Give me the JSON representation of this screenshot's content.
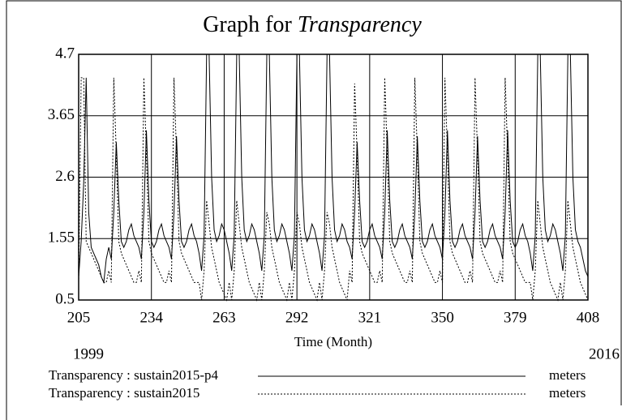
{
  "chart_data": {
    "type": "line",
    "title": "Graph for",
    "title_italic": "Transparency",
    "x_label": "Time (Month)",
    "x_start_label": "1999",
    "x_end_label": "2016",
    "xlim": [
      205,
      408
    ],
    "xticks": [
      205,
      234,
      263,
      292,
      321,
      350,
      379,
      408
    ],
    "ylim": [
      0.5,
      4.7
    ],
    "yticks": [
      0.5,
      1.55,
      2.6,
      3.65,
      4.7
    ],
    "grid": true,
    "x": [
      205,
      206,
      207,
      208,
      209,
      210,
      211,
      212,
      213,
      214,
      215,
      216,
      217,
      218,
      219,
      220,
      221,
      222,
      223,
      224,
      225,
      226,
      227,
      228,
      229,
      230,
      231,
      232,
      233,
      234,
      235,
      236,
      237,
      238,
      239,
      240,
      241,
      242,
      243,
      244,
      245,
      246,
      247,
      248,
      249,
      250,
      251,
      252,
      253,
      254,
      255,
      256,
      257,
      258,
      259,
      260,
      261,
      262,
      263,
      264,
      265,
      266,
      267,
      268,
      269,
      270,
      271,
      272,
      273,
      274,
      275,
      276,
      277,
      278,
      279,
      280,
      281,
      282,
      283,
      284,
      285,
      286,
      287,
      288,
      289,
      290,
      291,
      292,
      293,
      294,
      295,
      296,
      297,
      298,
      299,
      300,
      301,
      302,
      303,
      304,
      305,
      306,
      307,
      308,
      309,
      310,
      311,
      312,
      313,
      314,
      315,
      316,
      317,
      318,
      319,
      320,
      321,
      322,
      323,
      324,
      325,
      326,
      327,
      328,
      329,
      330,
      331,
      332,
      333,
      334,
      335,
      336,
      337,
      338,
      339,
      340,
      341,
      342,
      343,
      344,
      345,
      346,
      347,
      348,
      349,
      350,
      351,
      352,
      353,
      354,
      355,
      356,
      357,
      358,
      359,
      360,
      361,
      362,
      363,
      364,
      365,
      366,
      367,
      368,
      369,
      370,
      371,
      372,
      373,
      374,
      375,
      376,
      377,
      378,
      379,
      380,
      381,
      382,
      383,
      384,
      385,
      386,
      387,
      388,
      389,
      390,
      391,
      392,
      393,
      394,
      395,
      396,
      397,
      398,
      399,
      400,
      401,
      402,
      403,
      404,
      405,
      406,
      407,
      408
    ],
    "series": [
      {
        "name": "Transparency : sustain2015-p4",
        "units": "meters",
        "color": "#000000",
        "dash": "solid",
        "values": [
          0.9,
          1.5,
          2.5,
          4.3,
          2.0,
          1.4,
          1.3,
          1.2,
          1.1,
          0.9,
          0.8,
          1.2,
          1.4,
          1.2,
          2.0,
          3.2,
          2.2,
          1.5,
          1.4,
          1.5,
          1.7,
          1.8,
          1.6,
          1.5,
          1.4,
          1.2,
          2.0,
          3.4,
          2.2,
          1.5,
          1.4,
          1.5,
          1.7,
          1.8,
          1.6,
          1.5,
          1.4,
          1.2,
          2.0,
          3.3,
          2.2,
          1.5,
          1.4,
          1.5,
          1.7,
          1.8,
          1.6,
          1.5,
          1.3,
          1.0,
          1.6,
          4.7,
          4.7,
          2.6,
          1.7,
          1.5,
          1.6,
          1.8,
          1.7,
          1.5,
          1.3,
          1.0,
          1.6,
          4.7,
          4.7,
          2.6,
          1.7,
          1.5,
          1.6,
          1.8,
          1.7,
          1.5,
          1.3,
          1.0,
          1.6,
          4.7,
          4.7,
          2.6,
          1.7,
          1.5,
          1.6,
          1.8,
          1.7,
          1.5,
          1.3,
          1.0,
          1.6,
          4.7,
          4.7,
          2.6,
          1.7,
          1.5,
          1.6,
          1.8,
          1.7,
          1.5,
          1.3,
          1.0,
          1.6,
          4.7,
          4.7,
          2.6,
          1.7,
          1.5,
          1.6,
          1.8,
          1.7,
          1.5,
          1.4,
          1.2,
          2.0,
          3.2,
          2.2,
          1.5,
          1.4,
          1.5,
          1.7,
          1.8,
          1.6,
          1.5,
          1.4,
          1.2,
          2.0,
          3.4,
          2.2,
          1.5,
          1.4,
          1.5,
          1.7,
          1.8,
          1.6,
          1.5,
          1.4,
          1.2,
          2.0,
          3.3,
          2.2,
          1.5,
          1.4,
          1.5,
          1.7,
          1.8,
          1.6,
          1.5,
          1.4,
          1.2,
          2.0,
          3.4,
          2.2,
          1.5,
          1.4,
          1.5,
          1.7,
          1.8,
          1.6,
          1.5,
          1.4,
          1.2,
          2.0,
          3.3,
          2.2,
          1.5,
          1.4,
          1.5,
          1.7,
          1.8,
          1.6,
          1.5,
          1.4,
          1.2,
          2.0,
          3.4,
          2.2,
          1.5,
          1.4,
          1.5,
          1.7,
          1.8,
          1.6,
          1.5,
          1.3,
          1.0,
          1.6,
          4.7,
          4.7,
          2.6,
          1.7,
          1.5,
          1.6,
          1.8,
          1.7,
          1.5,
          1.3,
          1.0,
          1.6,
          4.7,
          4.7,
          2.6,
          1.7,
          1.5,
          1.4,
          1.2,
          1.0,
          0.9
        ]
      },
      {
        "name": "Transparency : sustain2015",
        "units": "meters",
        "color": "#000000",
        "dash": "dotted",
        "values": [
          0.8,
          4.3,
          4.3,
          1.5,
          1.4,
          1.3,
          1.2,
          1.1,
          1.0,
          0.9,
          0.8,
          0.8,
          1.0,
          0.8,
          4.3,
          3.0,
          1.5,
          1.3,
          1.2,
          1.1,
          1.0,
          0.9,
          0.8,
          0.8,
          1.0,
          0.8,
          4.3,
          3.0,
          1.5,
          1.3,
          1.2,
          1.1,
          1.0,
          0.9,
          0.8,
          0.8,
          1.0,
          0.8,
          4.3,
          3.0,
          1.5,
          1.3,
          1.2,
          1.1,
          1.0,
          0.9,
          0.8,
          0.8,
          0.8,
          0.5,
          1.0,
          2.2,
          1.8,
          1.4,
          1.2,
          1.0,
          0.8,
          0.7,
          0.6,
          0.5,
          0.8,
          0.5,
          1.0,
          2.2,
          1.8,
          1.4,
          1.2,
          1.0,
          0.8,
          0.7,
          0.6,
          0.5,
          0.8,
          0.5,
          1.0,
          2.0,
          1.8,
          1.4,
          1.2,
          1.0,
          0.8,
          0.7,
          0.6,
          0.5,
          0.8,
          0.5,
          1.0,
          2.0,
          1.8,
          1.4,
          1.2,
          1.0,
          0.8,
          0.7,
          0.6,
          0.5,
          0.8,
          0.5,
          1.0,
          2.0,
          1.8,
          1.4,
          1.2,
          1.0,
          0.8,
          0.7,
          0.6,
          0.5,
          1.0,
          0.8,
          4.2,
          3.0,
          1.5,
          1.3,
          1.2,
          1.1,
          1.0,
          0.9,
          0.8,
          0.8,
          1.0,
          0.8,
          4.3,
          3.0,
          1.5,
          1.3,
          1.2,
          1.1,
          1.0,
          0.9,
          0.8,
          0.8,
          1.0,
          0.8,
          4.3,
          3.0,
          1.5,
          1.3,
          1.2,
          1.1,
          1.0,
          0.9,
          0.8,
          0.8,
          1.0,
          0.8,
          4.3,
          3.0,
          1.5,
          1.3,
          1.2,
          1.1,
          1.0,
          0.9,
          0.8,
          0.8,
          1.0,
          0.8,
          4.3,
          3.0,
          1.5,
          1.3,
          1.2,
          1.1,
          1.0,
          0.9,
          0.8,
          0.8,
          1.0,
          0.8,
          4.3,
          3.0,
          1.5,
          1.3,
          1.2,
          1.1,
          1.0,
          0.9,
          0.8,
          0.8,
          0.8,
          0.5,
          1.0,
          2.2,
          1.8,
          1.4,
          1.2,
          1.0,
          0.8,
          0.7,
          0.6,
          0.5,
          0.8,
          0.5,
          1.0,
          2.2,
          1.8,
          1.4,
          1.2,
          1.0,
          0.8,
          0.7,
          0.6,
          0.5
        ]
      }
    ]
  }
}
